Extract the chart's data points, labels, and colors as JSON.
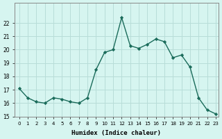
{
  "x": [
    0,
    1,
    2,
    3,
    4,
    5,
    6,
    7,
    8,
    9,
    10,
    11,
    12,
    13,
    14,
    15,
    16,
    17,
    18,
    19,
    20,
    21,
    22,
    23
  ],
  "y": [
    17.1,
    16.4,
    16.1,
    16.0,
    16.4,
    16.3,
    16.1,
    16.0,
    16.4,
    18.5,
    19.8,
    20.0,
    22.4,
    20.3,
    20.1,
    20.4,
    20.8,
    20.6,
    19.4,
    19.6,
    18.7,
    16.4,
    15.5,
    15.2
  ],
  "xlabel": "Humidex (Indice chaleur)",
  "ylim": [
    15,
    23
  ],
  "xlim": [
    -0.5,
    23.3
  ],
  "yticks": [
    15,
    16,
    17,
    18,
    19,
    20,
    21,
    22
  ],
  "xticks": [
    0,
    1,
    2,
    3,
    4,
    5,
    6,
    7,
    8,
    9,
    10,
    11,
    12,
    13,
    14,
    15,
    16,
    17,
    18,
    19,
    20,
    21,
    22,
    23
  ],
  "line_color": "#1a6b5a",
  "marker_color": "#1a6b5a",
  "bg_color": "#d6f5f0",
  "grid_color": "#b8ddd8",
  "fig_bg": "#d6f5f0"
}
